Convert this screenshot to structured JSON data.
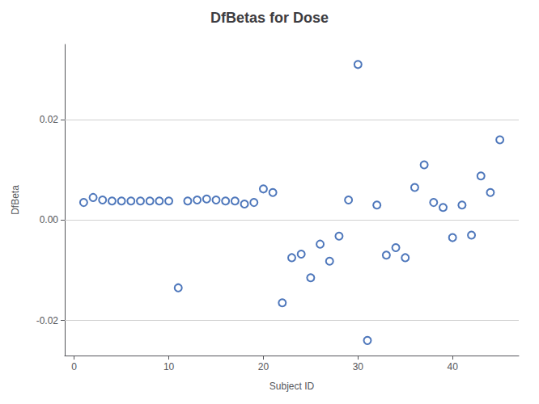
{
  "chart_data": {
    "type": "scatter",
    "title": "DfBetas for Dose",
    "xlabel": "Subject ID",
    "ylabel": "DfBeta",
    "x": [
      1,
      2,
      3,
      4,
      5,
      6,
      7,
      8,
      9,
      10,
      11,
      12,
      13,
      14,
      15,
      16,
      17,
      18,
      19,
      20,
      21,
      22,
      23,
      24,
      25,
      26,
      27,
      28,
      29,
      30,
      31,
      32,
      33,
      34,
      35,
      36,
      37,
      38,
      39,
      40,
      41,
      42,
      43,
      44,
      45
    ],
    "values": [
      0.0035,
      0.0045,
      0.004,
      0.0038,
      0.0038,
      0.0038,
      0.0038,
      0.0038,
      0.0038,
      0.0038,
      -0.0135,
      0.0038,
      0.004,
      0.0042,
      0.004,
      0.0038,
      0.0038,
      0.0032,
      0.0035,
      0.0062,
      0.0055,
      -0.0165,
      -0.0075,
      -0.0068,
      -0.0115,
      -0.0048,
      -0.0082,
      -0.0032,
      0.004,
      0.031,
      -0.024,
      0.003,
      -0.007,
      -0.0055,
      -0.0075,
      0.0065,
      0.011,
      0.0035,
      0.0025,
      -0.0035,
      0.003,
      -0.003,
      0.0088,
      0.0055,
      0.016
    ],
    "color": "#2255aa",
    "marker": "circle",
    "xlim": [
      -1,
      47
    ],
    "ylim": [
      -0.027,
      0.035
    ],
    "xticks": [
      0,
      10,
      20,
      30,
      40
    ],
    "yticks": [
      -0.02,
      {
        "value": 0,
        "label": "0.00"
      },
      0.02
    ],
    "grid": true
  }
}
